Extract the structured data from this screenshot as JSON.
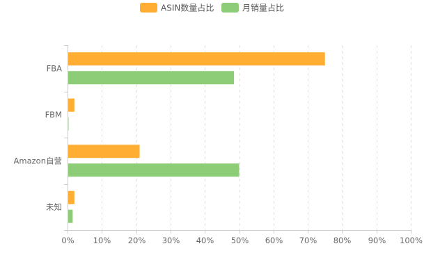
{
  "chart_data": {
    "type": "bar",
    "orientation": "horizontal",
    "categories": [
      "FBA",
      "FBM",
      "Amazon自营",
      "未知"
    ],
    "series": [
      {
        "name": "ASIN数量占比",
        "color": "#FFAE33",
        "values": [
          75,
          2,
          21,
          2
        ]
      },
      {
        "name": "月销量占比",
        "color": "#8DCD77",
        "values": [
          48.5,
          0.3,
          50,
          1.5
        ]
      }
    ],
    "xlim": [
      0,
      100
    ],
    "x_ticks": [
      "0%",
      "10%",
      "20%",
      "30%",
      "40%",
      "50%",
      "60%",
      "70%",
      "80%",
      "90%",
      "100%"
    ],
    "title": "",
    "xlabel": "",
    "ylabel": "",
    "grid": "vertical dashed",
    "legend_position": "top-center"
  }
}
